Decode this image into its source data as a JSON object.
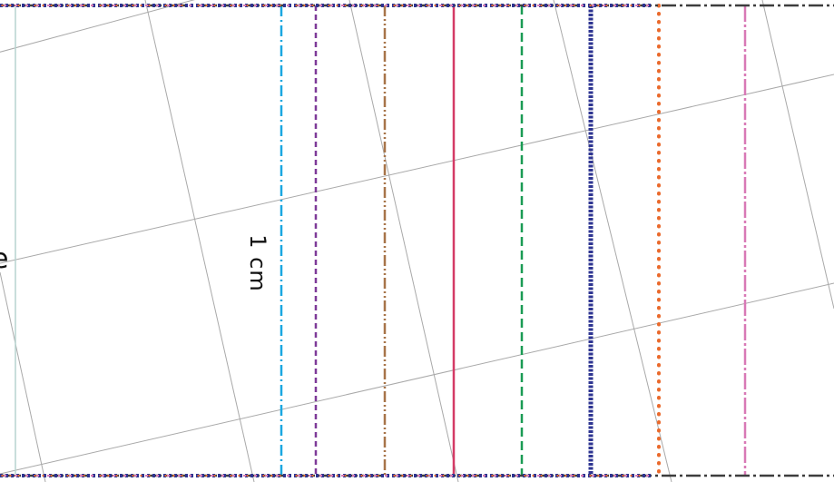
{
  "label": {
    "text": "1 cm"
  },
  "edge_glyph": {
    "text": "e"
  },
  "colors": {
    "background": "#ffffff",
    "grid": "#a9a9a9",
    "ruled_edge": "#3d3d3d",
    "light_teal": "#b7d3cf",
    "sky_blue": "#1aa7e0",
    "purple": "#7e3a98",
    "brown": "#a77449",
    "crimson": "#d43b66",
    "green": "#1a9b54",
    "navy": "#2e3592",
    "orange": "#ea6a2c",
    "pink": "#d879b6"
  }
}
